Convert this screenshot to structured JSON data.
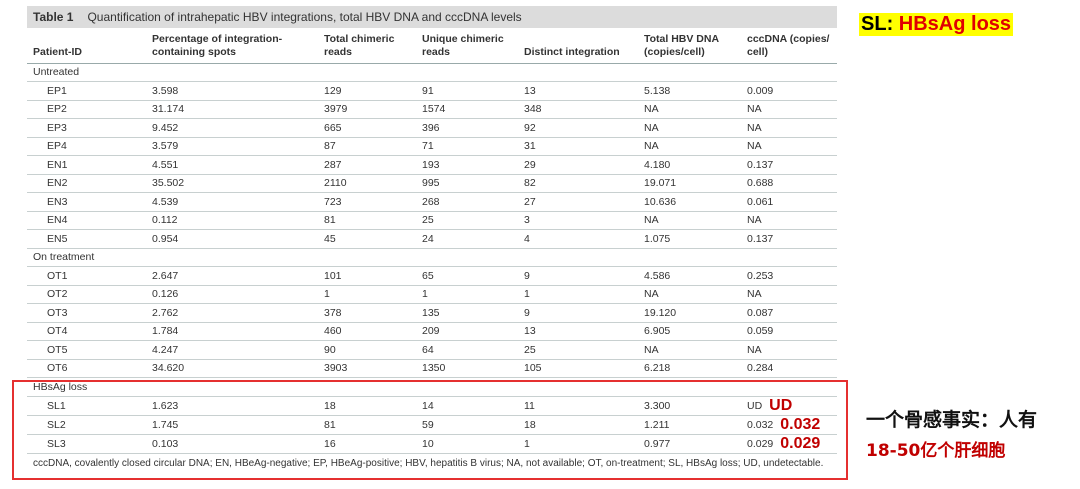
{
  "caption": {
    "label": "Table 1",
    "text": "Quantification of intrahepatic HBV integrations, total HBV DNA and cccDNA levels"
  },
  "columns": [
    "Patient-ID",
    "Percentage of integration-\ncontaining spots",
    "Total chimeric\nreads",
    "Unique chimeric\nreads",
    "Distinct integration",
    "Total HBV DNA\n(copies/cell)",
    "cccDNA (copies/\ncell)"
  ],
  "groups": [
    {
      "name": "Untreated",
      "rows": [
        [
          "EP1",
          "3.598",
          "129",
          "91",
          "13",
          "5.138",
          "0.009"
        ],
        [
          "EP2",
          "31.174",
          "3979",
          "1574",
          "348",
          "NA",
          "NA"
        ],
        [
          "EP3",
          "9.452",
          "665",
          "396",
          "92",
          "NA",
          "NA"
        ],
        [
          "EP4",
          "3.579",
          "87",
          "71",
          "31",
          "NA",
          "NA"
        ],
        [
          "EN1",
          "4.551",
          "287",
          "193",
          "29",
          "4.180",
          "0.137"
        ],
        [
          "EN2",
          "35.502",
          "2110",
          "995",
          "82",
          "19.071",
          "0.688"
        ],
        [
          "EN3",
          "4.539",
          "723",
          "268",
          "27",
          "10.636",
          "0.061"
        ],
        [
          "EN4",
          "0.112",
          "81",
          "25",
          "3",
          "NA",
          "NA"
        ],
        [
          "EN5",
          "0.954",
          "45",
          "24",
          "4",
          "1.075",
          "0.137"
        ]
      ]
    },
    {
      "name": "On treatment",
      "rows": [
        [
          "OT1",
          "2.647",
          "101",
          "65",
          "9",
          "4.586",
          "0.253"
        ],
        [
          "OT2",
          "0.126",
          "1",
          "1",
          "1",
          "NA",
          "NA"
        ],
        [
          "OT3",
          "2.762",
          "378",
          "135",
          "9",
          "19.120",
          "0.087"
        ],
        [
          "OT4",
          "1.784",
          "460",
          "209",
          "13",
          "6.905",
          "0.059"
        ],
        [
          "OT5",
          "4.247",
          "90",
          "64",
          "25",
          "NA",
          "NA"
        ],
        [
          "OT6",
          "34.620",
          "3903",
          "1350",
          "105",
          "6.218",
          "0.284"
        ]
      ]
    },
    {
      "name": "HBsAg loss",
      "rows": [
        [
          "SL1",
          "1.623",
          "18",
          "14",
          "11",
          "3.300",
          "UD"
        ],
        [
          "SL2",
          "1.745",
          "81",
          "59",
          "18",
          "1.211",
          "0.032"
        ],
        [
          "SL3",
          "0.103",
          "16",
          "10",
          "1",
          "0.977",
          "0.029"
        ]
      ],
      "annotations": [
        "UD",
        "0.032",
        "0.029"
      ]
    }
  ],
  "footnote": "cccDNA, covalently closed circular DNA; EN, HBeAg-negative; EP, HBeAg-positive; HBV, hepatitis B virus; NA, not available; OT, on-treatment; SL, HBsAg loss; UD, undetectable.",
  "side_note": {
    "key": "SL",
    "sep": ":",
    "value": "HBsAg loss"
  },
  "chinese_note": {
    "line1": "一个骨感事实：人有",
    "line2": "18-50亿个肝细胞"
  },
  "colors": {
    "highlight": "#ffff00",
    "annotation_red": "#c00000",
    "box_red": "#e53030",
    "caption_bg": "#dcdcdc"
  }
}
